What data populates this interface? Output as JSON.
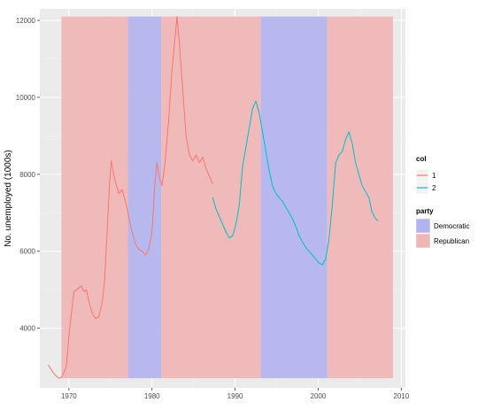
{
  "chart_data": {
    "type": "line",
    "xlabel": "",
    "ylabel": "No. unemployed (1000s)",
    "xlim": [
      1966.5,
      2010.5
    ],
    "ylim": [
      2450,
      12300
    ],
    "x_ticks": [
      1970,
      1980,
      1990,
      2000,
      2010
    ],
    "x_tick_labels": [
      "1970",
      "1980",
      "1990",
      "2000",
      "2010"
    ],
    "y_ticks": [
      4000,
      6000,
      8000,
      10000,
      12000
    ],
    "y_tick_labels": [
      "4000",
      "6000",
      "8000",
      "10000",
      "12000"
    ],
    "grid": true,
    "legend_position": "right",
    "colors": {
      "panel_bg": "#ebebeb",
      "grid": "#ffffff",
      "democratic": "#b2b3ee",
      "republican": "#f1b5b5",
      "series_1": "#f8766d",
      "series_2": "#00bfc4"
    },
    "party_periods": [
      {
        "party": "Republican",
        "start": 1969.1,
        "end": 1977.1
      },
      {
        "party": "Democratic",
        "start": 1977.1,
        "end": 1981.1
      },
      {
        "party": "Republican",
        "start": 1981.1,
        "end": 1993.1
      },
      {
        "party": "Democratic",
        "start": 1993.1,
        "end": 2001.1
      },
      {
        "party": "Republican",
        "start": 2001.1,
        "end": 2009.0
      }
    ],
    "series": [
      {
        "name": "1",
        "x": [
          1967.5,
          1967.8,
          1968.1,
          1968.5,
          1968.8,
          1969.1,
          1969.4,
          1969.7,
          1970.0,
          1970.3,
          1970.6,
          1970.9,
          1971.2,
          1971.5,
          1971.8,
          1972.1,
          1972.5,
          1972.9,
          1973.2,
          1973.6,
          1974.0,
          1974.3,
          1974.6,
          1974.9,
          1975.1,
          1975.3,
          1975.6,
          1976.0,
          1976.4,
          1976.8,
          1977.2,
          1977.6,
          1978.0,
          1978.4,
          1978.8,
          1979.2,
          1979.6,
          1980.0,
          1980.3,
          1980.6,
          1980.9,
          1981.2,
          1981.6,
          1982.0,
          1982.4,
          1982.8,
          1983.0,
          1983.3,
          1983.7,
          1984.1,
          1984.5,
          1984.9,
          1985.3,
          1985.7,
          1986.1,
          1986.5,
          1986.9,
          1987.3
        ],
        "y": [
          3050,
          2950,
          2850,
          2750,
          2700,
          2720,
          2850,
          3000,
          3800,
          4400,
          4950,
          5000,
          5050,
          5100,
          4950,
          5000,
          4600,
          4350,
          4250,
          4300,
          4650,
          5250,
          6500,
          7800,
          8350,
          8100,
          7800,
          7500,
          7600,
          7300,
          6900,
          6500,
          6200,
          6050,
          6000,
          5900,
          6050,
          6500,
          7600,
          8300,
          7900,
          7700,
          8350,
          9400,
          10700,
          11600,
          12100,
          11400,
          10200,
          9000,
          8500,
          8350,
          8500,
          8300,
          8450,
          8150,
          7950,
          7750
        ]
      },
      {
        "name": "2",
        "x": [
          1987.3,
          1987.7,
          1988.1,
          1988.5,
          1988.9,
          1989.3,
          1989.7,
          1990.1,
          1990.5,
          1990.9,
          1991.3,
          1991.7,
          1992.1,
          1992.5,
          1992.9,
          1993.3,
          1993.7,
          1994.1,
          1994.5,
          1994.9,
          1995.3,
          1995.7,
          1996.1,
          1996.5,
          1996.9,
          1997.3,
          1997.7,
          1998.1,
          1998.5,
          1998.9,
          1999.3,
          1999.7,
          2000.1,
          2000.5,
          2000.9,
          2001.3,
          2001.7,
          2002.1,
          2002.5,
          2002.9,
          2003.3,
          2003.7,
          2004.1,
          2004.5,
          2004.9,
          2005.3,
          2005.7,
          2006.1,
          2006.5,
          2006.9,
          2007.2
        ],
        "y": [
          7400,
          7100,
          6900,
          6700,
          6500,
          6350,
          6400,
          6700,
          7200,
          8200,
          8700,
          9200,
          9700,
          9900,
          9600,
          9100,
          8600,
          8100,
          7700,
          7500,
          7400,
          7300,
          7150,
          7000,
          6850,
          6650,
          6400,
          6250,
          6100,
          6000,
          5900,
          5800,
          5700,
          5650,
          5800,
          6300,
          7200,
          8300,
          8500,
          8600,
          8900,
          9100,
          8800,
          8300,
          8000,
          7700,
          7550,
          7400,
          7000,
          6850,
          6800
        ]
      }
    ],
    "legend": {
      "col_title": "col",
      "col_entries": [
        "1",
        "2"
      ],
      "party_title": "party",
      "party_entries": [
        "Democratic",
        "Republican"
      ]
    }
  }
}
